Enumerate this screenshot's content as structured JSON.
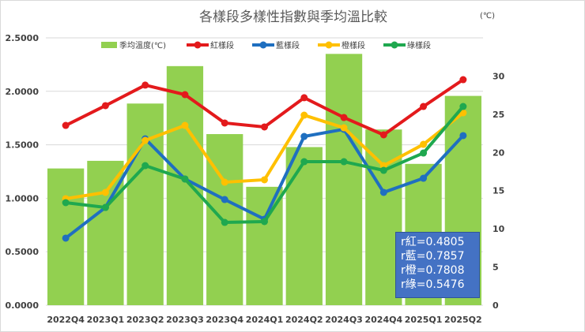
{
  "chart_data": {
    "type": "bar+line",
    "title": "各樣段多樣性指數與季均溫比較",
    "right_axis_unit": "(℃)",
    "categories": [
      "2022Q4",
      "2023Q1",
      "2023Q2",
      "2023Q3",
      "2023Q4",
      "2024Q1",
      "2024Q2",
      "2024Q3",
      "2024Q4",
      "2025Q1",
      "2025Q2"
    ],
    "left_axis": {
      "min": 0,
      "max": 2.5,
      "step": 0.5,
      "ticks": [
        "0.0000",
        "0.5000",
        "1.0000",
        "1.5000",
        "2.0000",
        "2.5000"
      ]
    },
    "right_axis": {
      "min": 0,
      "max": 35,
      "step": 5,
      "ticks": [
        "0",
        "5",
        "10",
        "15",
        "20",
        "25",
        "30"
      ]
    },
    "grid": true,
    "legend_position": "top",
    "bars": {
      "name": "季均溫度(℃)",
      "color": "#92d050",
      "axis": "right",
      "values": [
        17.9,
        18.9,
        26.4,
        31.3,
        22.4,
        15.5,
        20.7,
        32.9,
        23.0,
        18.5,
        27.4
      ]
    },
    "series": [
      {
        "name": "紅樣段",
        "color": "#e31a1c",
        "values": [
          1.681,
          1.866,
          2.058,
          1.969,
          1.704,
          1.667,
          1.94,
          1.755,
          1.593,
          1.858,
          2.109
        ]
      },
      {
        "name": "藍樣段",
        "color": "#1f6fc0",
        "values": [
          0.627,
          0.914,
          1.556,
          1.18,
          0.988,
          0.804,
          1.578,
          1.645,
          1.055,
          1.187,
          1.586
        ]
      },
      {
        "name": "橙樣段",
        "color": "#ffc000",
        "values": [
          0.996,
          1.055,
          1.541,
          1.681,
          1.15,
          1.173,
          1.777,
          1.659,
          1.305,
          1.504,
          1.799
        ]
      },
      {
        "name": "綠樣段",
        "color": "#1fa84f",
        "values": [
          0.959,
          0.914,
          1.305,
          1.18,
          0.774,
          0.782,
          1.342,
          1.342,
          1.261,
          1.423,
          1.858
        ]
      }
    ],
    "annotation": [
      "r紅=0.4805",
      "r藍=0.7857",
      "r橙=0.7808",
      "r綠=0.5476"
    ]
  }
}
